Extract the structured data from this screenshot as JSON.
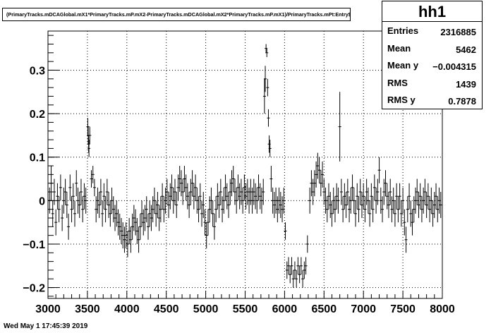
{
  "plot_title": "(PrimaryTracks.mDCAGlobal.mX1*PrimaryTracks.mP.mX2-PrimaryTracks.mDCAGlobal.mX2*PrimaryTracks.mP.mX1)/PrimaryTracks.mPt:Entry$",
  "stats": {
    "name": "hh1",
    "rows": [
      {
        "label": "Entries",
        "value": "2316885"
      },
      {
        "label": "Mean",
        "value": "5462"
      },
      {
        "label": "Mean y",
        "value": "−0.004315"
      },
      {
        "label": "RMS",
        "value": "1439"
      },
      {
        "label": "RMS y",
        "value": "0.7878"
      }
    ]
  },
  "footer": "Wed May  1 17:45:39 2019",
  "chart_data": {
    "type": "scatter",
    "title": "(PrimaryTracks.mDCAGlobal.mX1*PrimaryTracks.mP.mX2-PrimaryTracks.mDCAGlobal.mX2*PrimaryTracks.mP.mX1)/PrimaryTracks.mPt:Entry$",
    "xlabel": "",
    "ylabel": "",
    "xlim": [
      3000,
      8000
    ],
    "ylim": [
      -0.225,
      0.39
    ],
    "xticks": [
      3000,
      3500,
      4000,
      4500,
      5000,
      5500,
      6000,
      6500,
      7000,
      7500,
      8000
    ],
    "xtick_labels": [
      "3000",
      "3500",
      "4000",
      "4500",
      "5000",
      "5500",
      "6000",
      "6500",
      "7000",
      "7500",
      "8000"
    ],
    "yticks": [
      -0.2,
      -0.1,
      0,
      0.1,
      0.2,
      0.3
    ],
    "ytick_labels": [
      "−0.2",
      "−0.1",
      "0",
      "0.1",
      "0.2",
      "0.3"
    ],
    "grid": true,
    "points": [
      [
        3020,
        0.0,
        0.03
      ],
      [
        3040,
        0.04,
        0.04
      ],
      [
        3060,
        -0.03,
        0.03
      ],
      [
        3080,
        0.02,
        0.03
      ],
      [
        3100,
        -0.05,
        0.03
      ],
      [
        3120,
        0.01,
        0.03
      ],
      [
        3140,
        -0.02,
        0.03
      ],
      [
        3160,
        0.03,
        0.03
      ],
      [
        3180,
        -0.04,
        0.03
      ],
      [
        3200,
        0.0,
        0.03
      ],
      [
        3220,
        0.02,
        0.03
      ],
      [
        3240,
        -0.01,
        0.03
      ],
      [
        3260,
        -0.06,
        0.03
      ],
      [
        3280,
        0.03,
        0.03
      ],
      [
        3300,
        -0.02,
        0.03
      ],
      [
        3320,
        0.01,
        0.03
      ],
      [
        3340,
        -0.03,
        0.03
      ],
      [
        3360,
        0.04,
        0.03
      ],
      [
        3380,
        0.0,
        0.03
      ],
      [
        3400,
        -0.01,
        0.03
      ],
      [
        3420,
        0.02,
        0.03
      ],
      [
        3440,
        -0.02,
        0.03
      ],
      [
        3460,
        0.01,
        0.03
      ],
      [
        3480,
        0.0,
        0.03
      ],
      [
        3505,
        0.17,
        0.02
      ],
      [
        3510,
        0.15,
        0.02
      ],
      [
        3515,
        0.13,
        0.02
      ],
      [
        3520,
        0.12,
        0.02
      ],
      [
        3530,
        0.15,
        0.02
      ],
      [
        3550,
        0.05,
        0.02
      ],
      [
        3570,
        0.06,
        0.02
      ],
      [
        3590,
        0.03,
        0.02
      ],
      [
        3610,
        -0.02,
        0.03
      ],
      [
        3630,
        0.0,
        0.03
      ],
      [
        3650,
        -0.01,
        0.03
      ],
      [
        3670,
        0.02,
        0.03
      ],
      [
        3690,
        -0.03,
        0.03
      ],
      [
        3710,
        0.01,
        0.03
      ],
      [
        3730,
        -0.02,
        0.03
      ],
      [
        3750,
        0.02,
        0.03
      ],
      [
        3770,
        -0.01,
        0.03
      ],
      [
        3790,
        -0.03,
        0.03
      ],
      [
        3810,
        0.0,
        0.03
      ],
      [
        3830,
        -0.02,
        0.03
      ],
      [
        3850,
        -0.04,
        0.03
      ],
      [
        3870,
        -0.03,
        0.03
      ],
      [
        3890,
        -0.05,
        0.03
      ],
      [
        3910,
        -0.06,
        0.03
      ],
      [
        3930,
        -0.07,
        0.03
      ],
      [
        3950,
        -0.08,
        0.03
      ],
      [
        3970,
        -0.09,
        0.03
      ],
      [
        3990,
        -0.08,
        0.03
      ],
      [
        4010,
        -0.1,
        0.03
      ],
      [
        4030,
        -0.07,
        0.03
      ],
      [
        4050,
        -0.09,
        0.03
      ],
      [
        4070,
        -0.06,
        0.03
      ],
      [
        4090,
        -0.04,
        0.03
      ],
      [
        4110,
        -0.05,
        0.03
      ],
      [
        4130,
        -0.07,
        0.03
      ],
      [
        4150,
        -0.09,
        0.03
      ],
      [
        4170,
        -0.06,
        0.03
      ],
      [
        4190,
        -0.03,
        0.03
      ],
      [
        4210,
        -0.05,
        0.03
      ],
      [
        4230,
        -0.04,
        0.03
      ],
      [
        4250,
        -0.02,
        0.03
      ],
      [
        4270,
        -0.06,
        0.03
      ],
      [
        4290,
        -0.03,
        0.03
      ],
      [
        4310,
        -0.04,
        0.03
      ],
      [
        4330,
        -0.02,
        0.03
      ],
      [
        4350,
        0.0,
        0.03
      ],
      [
        4370,
        -0.03,
        0.03
      ],
      [
        4390,
        -0.01,
        0.03
      ],
      [
        4410,
        -0.04,
        0.03
      ],
      [
        4430,
        -0.02,
        0.03
      ],
      [
        4450,
        0.01,
        0.03
      ],
      [
        4470,
        -0.02,
        0.03
      ],
      [
        4490,
        0.0,
        0.03
      ],
      [
        4510,
        0.02,
        0.03
      ],
      [
        4530,
        -0.01,
        0.03
      ],
      [
        4550,
        0.01,
        0.03
      ],
      [
        4570,
        0.03,
        0.03
      ],
      [
        4590,
        0.0,
        0.03
      ],
      [
        4610,
        0.02,
        0.03
      ],
      [
        4630,
        -0.01,
        0.03
      ],
      [
        4650,
        0.03,
        0.03
      ],
      [
        4670,
        0.05,
        0.03
      ],
      [
        4690,
        0.04,
        0.03
      ],
      [
        4710,
        0.02,
        0.03
      ],
      [
        4730,
        0.05,
        0.03
      ],
      [
        4750,
        0.03,
        0.03
      ],
      [
        4770,
        0.01,
        0.03
      ],
      [
        4790,
        -0.01,
        0.03
      ],
      [
        4810,
        0.02,
        0.03
      ],
      [
        4830,
        0.04,
        0.03
      ],
      [
        4850,
        0.01,
        0.03
      ],
      [
        4870,
        0.03,
        0.03
      ],
      [
        4890,
        0.0,
        0.03
      ],
      [
        4910,
        -0.02,
        0.03
      ],
      [
        4930,
        0.01,
        0.03
      ],
      [
        4950,
        -0.03,
        0.03
      ],
      [
        4970,
        -0.01,
        0.03
      ],
      [
        4990,
        -0.05,
        0.03
      ],
      [
        5010,
        -0.08,
        0.03
      ],
      [
        5030,
        -0.05,
        0.03
      ],
      [
        5050,
        -0.02,
        0.03
      ],
      [
        5070,
        0.0,
        0.03
      ],
      [
        5090,
        -0.03,
        0.03
      ],
      [
        5110,
        -0.06,
        0.03
      ],
      [
        5130,
        -0.02,
        0.03
      ],
      [
        5150,
        0.01,
        0.03
      ],
      [
        5170,
        -0.01,
        0.03
      ],
      [
        5190,
        0.02,
        0.03
      ],
      [
        5210,
        -0.02,
        0.03
      ],
      [
        5230,
        0.0,
        0.03
      ],
      [
        5250,
        0.03,
        0.03
      ],
      [
        5270,
        0.01,
        0.03
      ],
      [
        5290,
        -0.01,
        0.03
      ],
      [
        5310,
        0.02,
        0.03
      ],
      [
        5330,
        0.04,
        0.03
      ],
      [
        5350,
        0.05,
        0.03
      ],
      [
        5370,
        0.02,
        0.03
      ],
      [
        5390,
        0.0,
        0.03
      ],
      [
        5410,
        0.03,
        0.03
      ],
      [
        5430,
        0.01,
        0.03
      ],
      [
        5450,
        0.02,
        0.03
      ],
      [
        5470,
        0.0,
        0.03
      ],
      [
        5490,
        0.03,
        0.03
      ],
      [
        5510,
        0.01,
        0.03
      ],
      [
        5530,
        0.02,
        0.03
      ],
      [
        5550,
        0.0,
        0.03
      ],
      [
        5570,
        0.02,
        0.03
      ],
      [
        5590,
        0.0,
        0.03
      ],
      [
        5610,
        0.02,
        0.03
      ],
      [
        5630,
        0.01,
        0.03
      ],
      [
        5650,
        0.0,
        0.03
      ],
      [
        5670,
        0.03,
        0.03
      ],
      [
        5690,
        0.01,
        0.03
      ],
      [
        5710,
        0.0,
        0.03
      ],
      [
        5730,
        0.02,
        0.03
      ],
      [
        5745,
        0.24,
        0.04
      ],
      [
        5755,
        0.28,
        0.03
      ],
      [
        5765,
        0.35,
        0.01
      ],
      [
        5775,
        0.34,
        0.01
      ],
      [
        5785,
        0.26,
        0.02
      ],
      [
        5795,
        0.19,
        0.02
      ],
      [
        5805,
        0.13,
        0.02
      ],
      [
        5815,
        0.12,
        0.02
      ],
      [
        5830,
        0.05,
        0.03
      ],
      [
        5850,
        0.0,
        0.03
      ],
      [
        5870,
        -0.01,
        0.03
      ],
      [
        5890,
        0.0,
        0.03
      ],
      [
        5910,
        -0.02,
        0.03
      ],
      [
        5930,
        0.0,
        0.03
      ],
      [
        5950,
        -0.01,
        0.03
      ],
      [
        5970,
        -0.02,
        0.03
      ],
      [
        5990,
        0.0,
        0.03
      ],
      [
        6010,
        -0.07,
        0.02
      ],
      [
        6030,
        -0.16,
        0.02
      ],
      [
        6050,
        -0.15,
        0.02
      ],
      [
        6070,
        -0.17,
        0.02
      ],
      [
        6090,
        -0.15,
        0.02
      ],
      [
        6110,
        -0.18,
        0.02
      ],
      [
        6130,
        -0.16,
        0.02
      ],
      [
        6150,
        -0.18,
        0.02
      ],
      [
        6170,
        -0.15,
        0.02
      ],
      [
        6190,
        -0.17,
        0.02
      ],
      [
        6210,
        -0.15,
        0.02
      ],
      [
        6230,
        -0.18,
        0.02
      ],
      [
        6250,
        -0.16,
        0.02
      ],
      [
        6270,
        -0.15,
        0.02
      ],
      [
        6290,
        -0.1,
        0.02
      ],
      [
        6320,
        0.0,
        0.03
      ],
      [
        6340,
        0.04,
        0.03
      ],
      [
        6360,
        0.02,
        0.03
      ],
      [
        6380,
        0.04,
        0.03
      ],
      [
        6400,
        0.06,
        0.03
      ],
      [
        6420,
        0.08,
        0.03
      ],
      [
        6440,
        0.07,
        0.03
      ],
      [
        6460,
        0.04,
        0.03
      ],
      [
        6480,
        0.06,
        0.03
      ],
      [
        6500,
        0.02,
        0.03
      ],
      [
        6520,
        0.0,
        0.03
      ],
      [
        6540,
        -0.02,
        0.03
      ],
      [
        6560,
        0.01,
        0.03
      ],
      [
        6580,
        -0.01,
        0.03
      ],
      [
        6600,
        -0.03,
        0.03
      ],
      [
        6620,
        0.0,
        0.03
      ],
      [
        6640,
        -0.02,
        0.03
      ],
      [
        6660,
        0.01,
        0.03
      ],
      [
        6680,
        0.0,
        0.03
      ],
      [
        6700,
        0.17,
        0.08
      ],
      [
        6720,
        0.02,
        0.03
      ],
      [
        6740,
        -0.02,
        0.03
      ],
      [
        6760,
        0.01,
        0.03
      ],
      [
        6780,
        -0.01,
        0.03
      ],
      [
        6800,
        0.02,
        0.03
      ],
      [
        6820,
        -0.02,
        0.03
      ],
      [
        6840,
        0.0,
        0.03
      ],
      [
        6860,
        0.03,
        0.03
      ],
      [
        6880,
        0.0,
        0.03
      ],
      [
        6900,
        -0.03,
        0.03
      ],
      [
        6920,
        0.01,
        0.03
      ],
      [
        6940,
        -0.02,
        0.03
      ],
      [
        6960,
        0.02,
        0.03
      ],
      [
        6980,
        -0.01,
        0.03
      ],
      [
        7000,
        0.01,
        0.03
      ],
      [
        7020,
        -0.02,
        0.03
      ],
      [
        7040,
        0.02,
        0.03
      ],
      [
        7060,
        0.0,
        0.03
      ],
      [
        7080,
        -0.03,
        0.03
      ],
      [
        7100,
        0.01,
        0.03
      ],
      [
        7120,
        -0.02,
        0.03
      ],
      [
        7140,
        0.03,
        0.03
      ],
      [
        7160,
        0.0,
        0.03
      ],
      [
        7180,
        0.02,
        0.03
      ],
      [
        7200,
        0.07,
        0.03
      ],
      [
        7220,
        0.0,
        0.03
      ],
      [
        7240,
        -0.02,
        0.03
      ],
      [
        7260,
        0.02,
        0.03
      ],
      [
        7280,
        0.04,
        0.03
      ],
      [
        7300,
        0.01,
        0.03
      ],
      [
        7320,
        -0.01,
        0.03
      ],
      [
        7340,
        0.02,
        0.03
      ],
      [
        7360,
        -0.02,
        0.03
      ],
      [
        7380,
        0.0,
        0.03
      ],
      [
        7400,
        -0.03,
        0.03
      ],
      [
        7420,
        0.01,
        0.03
      ],
      [
        7440,
        -0.02,
        0.03
      ],
      [
        7460,
        0.01,
        0.03
      ],
      [
        7480,
        -0.03,
        0.03
      ],
      [
        7500,
        0.0,
        0.03
      ],
      [
        7520,
        -0.05,
        0.03
      ],
      [
        7540,
        -0.09,
        0.03
      ],
      [
        7560,
        -0.02,
        0.03
      ],
      [
        7580,
        0.01,
        0.03
      ],
      [
        7600,
        -0.03,
        0.03
      ],
      [
        7620,
        -0.05,
        0.03
      ],
      [
        7640,
        -0.02,
        0.03
      ],
      [
        7660,
        0.0,
        0.03
      ],
      [
        7680,
        0.02,
        0.03
      ],
      [
        7700,
        -0.01,
        0.03
      ],
      [
        7720,
        0.01,
        0.03
      ],
      [
        7740,
        -0.02,
        0.03
      ],
      [
        7760,
        0.0,
        0.03
      ],
      [
        7780,
        0.02,
        0.03
      ],
      [
        7800,
        -0.01,
        0.03
      ],
      [
        7820,
        0.01,
        0.03
      ],
      [
        7840,
        -0.02,
        0.03
      ],
      [
        7860,
        0.0,
        0.03
      ],
      [
        7880,
        -0.03,
        0.03
      ],
      [
        7900,
        -0.01,
        0.03
      ],
      [
        7920,
        0.01,
        0.03
      ],
      [
        7940,
        -0.02,
        0.03
      ],
      [
        7960,
        0.0,
        0.03
      ],
      [
        7980,
        -0.01,
        0.03
      ]
    ]
  }
}
